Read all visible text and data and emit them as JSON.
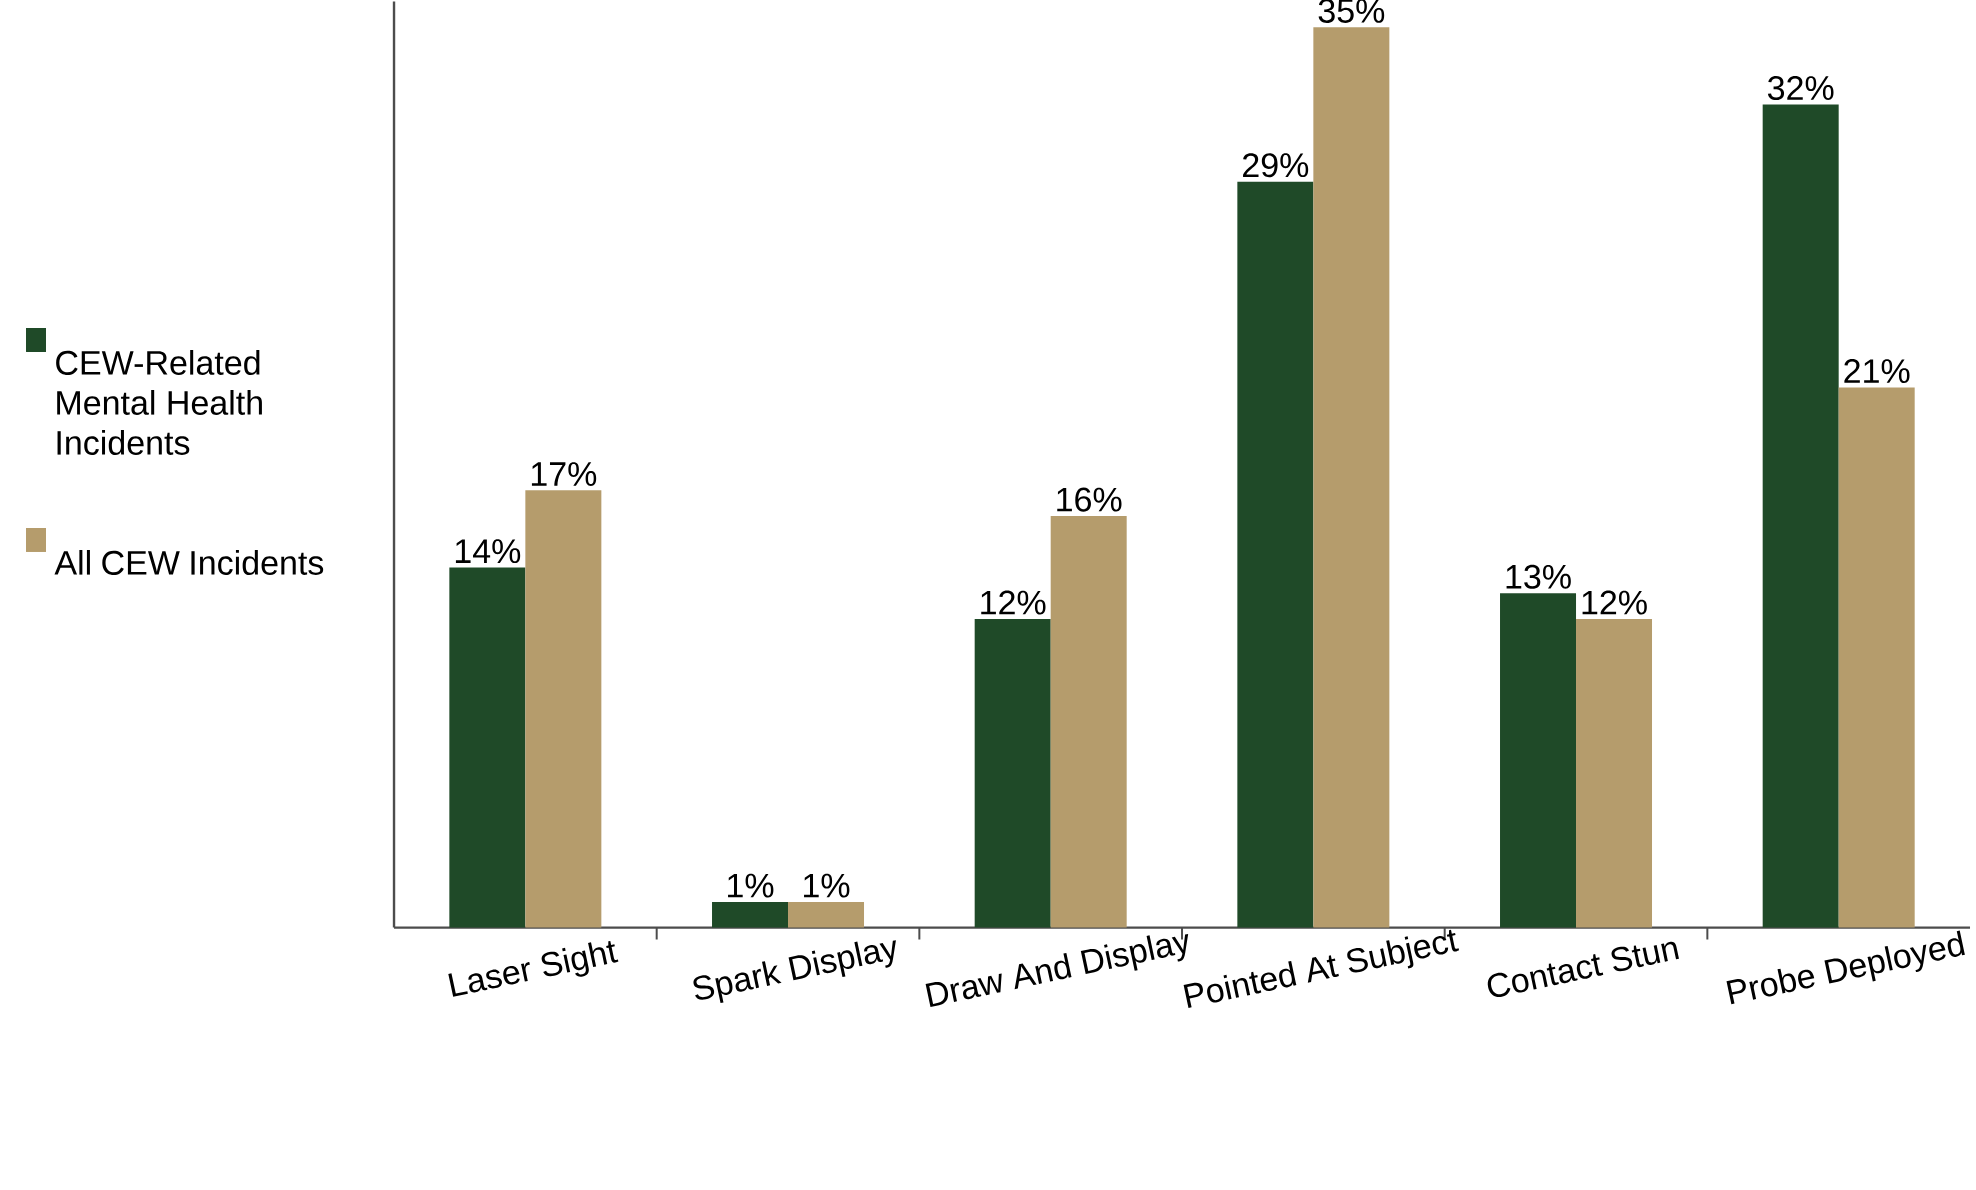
{
  "chart_data": {
    "type": "bar",
    "categories": [
      "Laser Sight",
      "Spark Display",
      "Draw And Display",
      "Pointed At Subject",
      "Contact Stun",
      "Probe Deployed"
    ],
    "series": [
      {
        "name": "CEW-Related Mental Health Incidents",
        "color": "#1f4a28",
        "values": [
          14,
          1,
          12,
          29,
          13,
          32
        ],
        "value_labels": [
          "14%",
          "1%",
          "12%",
          "29%",
          "13%",
          "32%"
        ]
      },
      {
        "name": "All CEW Incidents",
        "color": "#b59c6c",
        "values": [
          17,
          1,
          16,
          35,
          12,
          21
        ],
        "value_labels": [
          "17%",
          "1%",
          "16%",
          "35%",
          "12%",
          "21%"
        ]
      }
    ],
    "ylim": [
      0,
      36
    ],
    "tick_labels": "x",
    "legend": "left"
  }
}
